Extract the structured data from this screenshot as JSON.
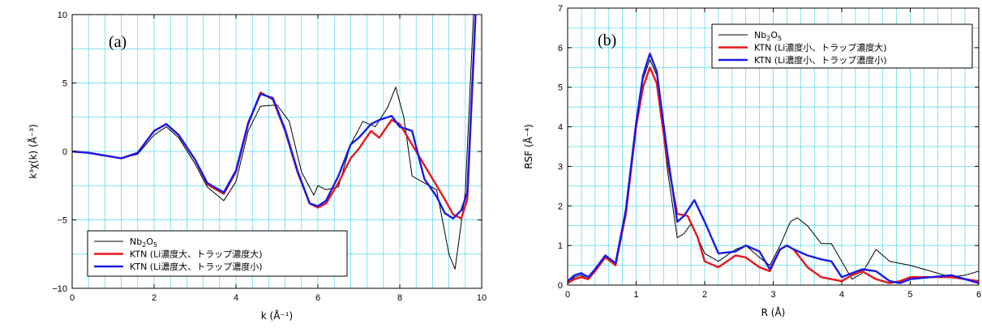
{
  "colors": {
    "grid": "#4fd8e6",
    "axis": "#000000",
    "nb2o5": "#000000",
    "red": "#e8161b",
    "blue": "#1a1ae8"
  },
  "chart_data": [
    {
      "type": "line",
      "panel_label": "(a)",
      "xlabel": "k (Å⁻¹)",
      "ylabel": "k³χ(k) (Å⁻³)",
      "xlim": [
        0,
        10
      ],
      "ylim": [
        -10,
        10
      ],
      "xticks": [
        "0",
        "2",
        "4",
        "6",
        "8",
        "10"
      ],
      "yticks": [
        "10",
        "5",
        "0",
        "−5",
        "−10"
      ],
      "grid": true,
      "legend_position": "bottom-left",
      "series": [
        {
          "name": "Nb2O5",
          "color": "#000000",
          "x": [
            0,
            0.4,
            0.8,
            1.2,
            1.6,
            2.0,
            2.3,
            2.6,
            3.0,
            3.3,
            3.7,
            4.0,
            4.3,
            4.6,
            5.0,
            5.3,
            5.6,
            5.9,
            6.0,
            6.2,
            6.5,
            6.8,
            7.1,
            7.4,
            7.7,
            7.9,
            8.1,
            8.3,
            8.6,
            8.9,
            9.2,
            9.35,
            9.6,
            9.8
          ],
          "y": [
            0,
            -0.1,
            -0.3,
            -0.5,
            -0.2,
            1.2,
            1.8,
            1.0,
            -0.9,
            -2.6,
            -3.6,
            -2.2,
            1.5,
            3.3,
            3.4,
            2.2,
            -1.5,
            -3.2,
            -2.5,
            -2.8,
            -2.6,
            0.5,
            2.2,
            1.8,
            3.2,
            4.7,
            2.5,
            -1.8,
            -2.3,
            -2.8,
            -7.5,
            -8.6,
            -3.0,
            10
          ]
        },
        {
          "name": "KTN (Li濃度大、トラップ濃度大)",
          "color": "#e8161b",
          "x": [
            0,
            0.4,
            0.8,
            1.2,
            1.6,
            2.0,
            2.3,
            2.6,
            3.0,
            3.3,
            3.7,
            4.0,
            4.3,
            4.6,
            4.9,
            5.2,
            5.5,
            5.8,
            6.0,
            6.2,
            6.5,
            6.8,
            7.0,
            7.3,
            7.5,
            7.8,
            8.0,
            8.3,
            8.6,
            8.9,
            9.1,
            9.3,
            9.5,
            9.65,
            9.85
          ],
          "y": [
            0,
            -0.1,
            -0.3,
            -0.5,
            -0.1,
            1.5,
            2.0,
            1.2,
            -0.6,
            -2.4,
            -3.1,
            -1.5,
            2.0,
            4.3,
            3.8,
            1.5,
            -1.5,
            -3.8,
            -4.1,
            -3.8,
            -2.3,
            -0.5,
            0.2,
            1.5,
            1.0,
            2.3,
            2.0,
            0.5,
            -1.0,
            -2.5,
            -3.5,
            -4.6,
            -4.9,
            -3.5,
            10
          ]
        },
        {
          "name": "KTN (Li濃度大、トラップ濃度小)",
          "color": "#1a1ae8",
          "x": [
            0,
            0.4,
            0.8,
            1.2,
            1.6,
            2.0,
            2.3,
            2.6,
            3.0,
            3.3,
            3.7,
            4.0,
            4.3,
            4.6,
            4.9,
            5.2,
            5.5,
            5.8,
            6.0,
            6.2,
            6.5,
            6.8,
            7.0,
            7.3,
            7.5,
            7.8,
            8.0,
            8.3,
            8.6,
            8.9,
            9.1,
            9.3,
            9.5,
            9.65,
            9.85
          ],
          "y": [
            0,
            -0.1,
            -0.3,
            -0.5,
            -0.1,
            1.5,
            2.0,
            1.2,
            -0.6,
            -2.3,
            -3.0,
            -1.4,
            2.1,
            4.2,
            3.9,
            1.6,
            -1.4,
            -3.8,
            -4.0,
            -3.6,
            -1.8,
            0.5,
            1.0,
            2.0,
            2.3,
            2.6,
            1.8,
            1.5,
            -2.0,
            -3.3,
            -4.5,
            -4.9,
            -4.3,
            -3.0,
            10
          ]
        }
      ]
    },
    {
      "type": "line",
      "panel_label": "(b)",
      "xlabel": "R (Å)",
      "ylabel": "RSF (Å⁻⁴)",
      "xlim": [
        0,
        6
      ],
      "ylim": [
        0,
        7
      ],
      "xticks": [
        "0",
        "1",
        "2",
        "3",
        "4",
        "5",
        "6"
      ],
      "yticks": [
        "7",
        "6",
        "5",
        "4",
        "3",
        "2",
        "1",
        "0"
      ],
      "grid": true,
      "legend_position": "top-right",
      "series": [
        {
          "name": "Nb2O5",
          "color": "#000000",
          "x": [
            0,
            0.1,
            0.2,
            0.3,
            0.4,
            0.55,
            0.7,
            0.85,
            1.0,
            1.1,
            1.2,
            1.3,
            1.45,
            1.6,
            1.7,
            1.8,
            1.9,
            2.0,
            2.2,
            2.45,
            2.6,
            2.8,
            2.95,
            3.1,
            3.25,
            3.35,
            3.5,
            3.7,
            3.85,
            4.0,
            4.15,
            4.3,
            4.5,
            4.7,
            5.0,
            5.3,
            5.6,
            5.8,
            6.0
          ],
          "y": [
            0.05,
            0.2,
            0.25,
            0.15,
            0.4,
            0.7,
            0.5,
            1.8,
            4.0,
            5.2,
            5.7,
            5.3,
            3.0,
            1.2,
            1.3,
            1.55,
            1.2,
            0.8,
            0.6,
            0.9,
            1.0,
            0.7,
            0.5,
            1.0,
            1.6,
            1.7,
            1.5,
            1.05,
            1.05,
            0.6,
            0.15,
            0.3,
            0.9,
            0.6,
            0.5,
            0.35,
            0.2,
            0.25,
            0.35
          ]
        },
        {
          "name": "KTN (Li濃度小、トラップ濃度大)",
          "color": "#e8161b",
          "x": [
            0,
            0.1,
            0.2,
            0.3,
            0.4,
            0.55,
            0.7,
            0.85,
            1.0,
            1.1,
            1.2,
            1.3,
            1.45,
            1.6,
            1.75,
            1.9,
            2.0,
            2.2,
            2.45,
            2.6,
            2.8,
            2.95,
            3.1,
            3.2,
            3.3,
            3.5,
            3.7,
            3.85,
            4.0,
            4.15,
            4.3,
            4.5,
            4.7,
            4.85,
            5.0,
            5.3,
            5.6,
            5.8,
            6.0
          ],
          "y": [
            0.05,
            0.15,
            0.2,
            0.15,
            0.35,
            0.7,
            0.5,
            1.8,
            4.0,
            5.0,
            5.5,
            5.1,
            3.2,
            1.8,
            1.75,
            1.2,
            0.6,
            0.45,
            0.75,
            0.7,
            0.45,
            0.35,
            0.9,
            1.0,
            0.9,
            0.45,
            0.2,
            0.15,
            0.1,
            0.25,
            0.35,
            0.15,
            0.05,
            0.1,
            0.2,
            0.2,
            0.2,
            0.15,
            0.1
          ]
        },
        {
          "name": "KTN (Li濃度小、トラップ濃度小)",
          "color": "#1a1ae8",
          "x": [
            0,
            0.1,
            0.2,
            0.3,
            0.4,
            0.55,
            0.7,
            0.85,
            1.0,
            1.1,
            1.2,
            1.3,
            1.45,
            1.6,
            1.7,
            1.85,
            2.0,
            2.2,
            2.45,
            2.6,
            2.8,
            2.95,
            3.1,
            3.2,
            3.3,
            3.5,
            3.7,
            3.85,
            4.0,
            4.15,
            4.3,
            4.5,
            4.7,
            4.85,
            5.0,
            5.3,
            5.6,
            5.8,
            6.0
          ],
          "y": [
            0.1,
            0.25,
            0.3,
            0.2,
            0.4,
            0.75,
            0.55,
            1.9,
            4.1,
            5.3,
            5.85,
            5.4,
            3.4,
            1.6,
            1.75,
            2.15,
            1.6,
            0.8,
            0.85,
            1.0,
            0.85,
            0.4,
            0.9,
            1.0,
            0.9,
            0.75,
            0.65,
            0.6,
            0.2,
            0.3,
            0.4,
            0.35,
            0.1,
            0.05,
            0.15,
            0.2,
            0.25,
            0.15,
            0.05
          ]
        }
      ]
    }
  ]
}
